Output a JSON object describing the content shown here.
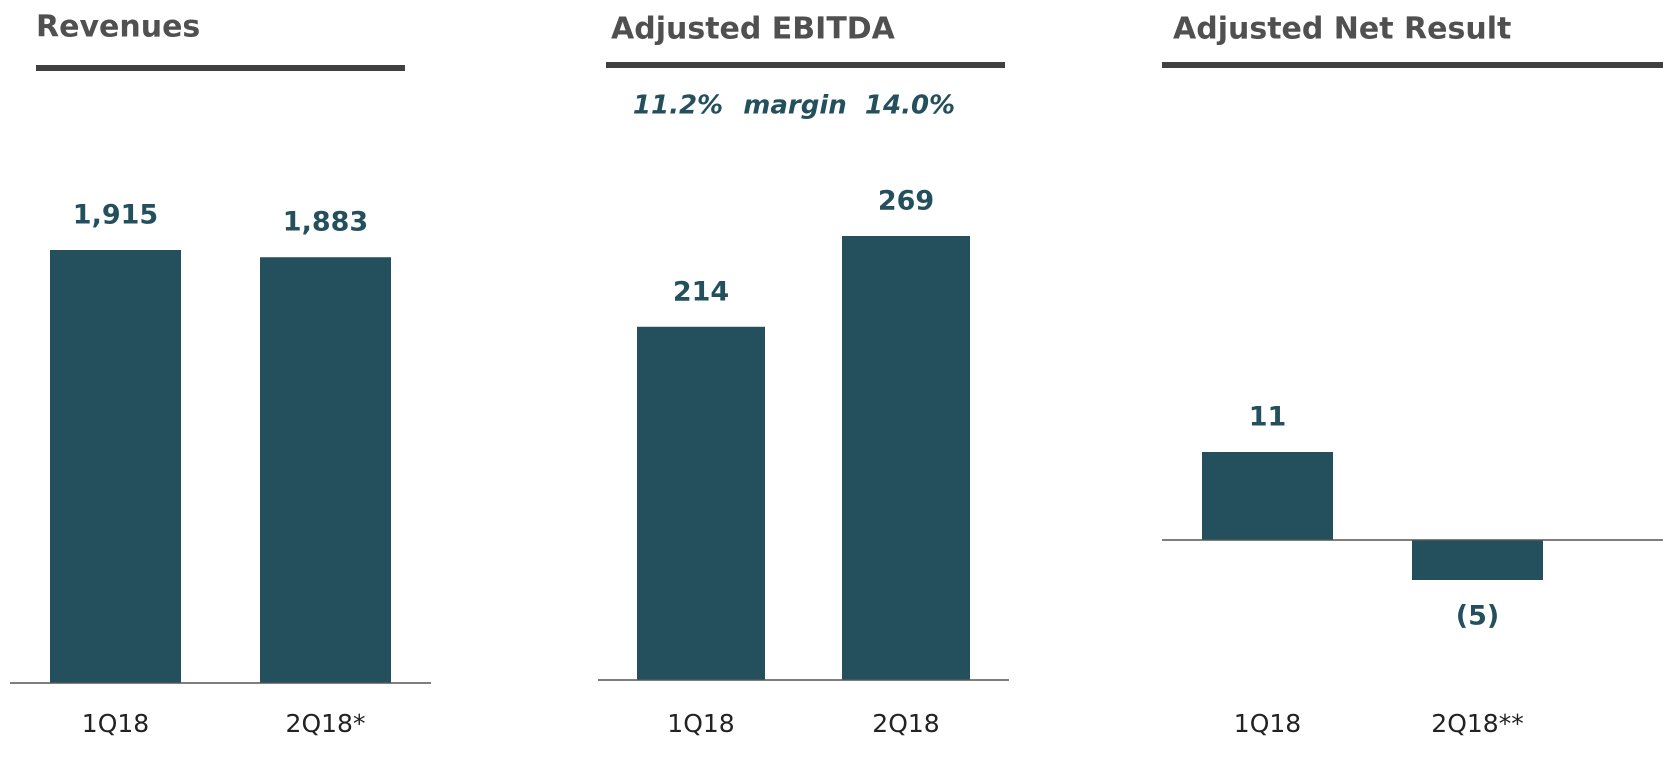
{
  "chart_data": [
    {
      "type": "bar",
      "title": "Revenues",
      "categories": [
        "1Q18",
        "2Q18*"
      ],
      "values": [
        1915,
        1883
      ],
      "value_labels": [
        "1,915",
        "1,883"
      ],
      "color": "#24505e"
    },
    {
      "type": "bar",
      "title": "Adjusted EBITDA",
      "annotations": [
        "11.2%",
        "margin",
        "14.0%"
      ],
      "categories": [
        "1Q18",
        "2Q18"
      ],
      "values": [
        214,
        269
      ],
      "color": "#24505e"
    },
    {
      "type": "bar",
      "title": "Adjusted Net Result",
      "categories": [
        "1Q18",
        "2Q18**"
      ],
      "values": [
        11,
        -5
      ],
      "value_labels": [
        "11",
        "(5)"
      ],
      "color": "#24505e"
    }
  ]
}
